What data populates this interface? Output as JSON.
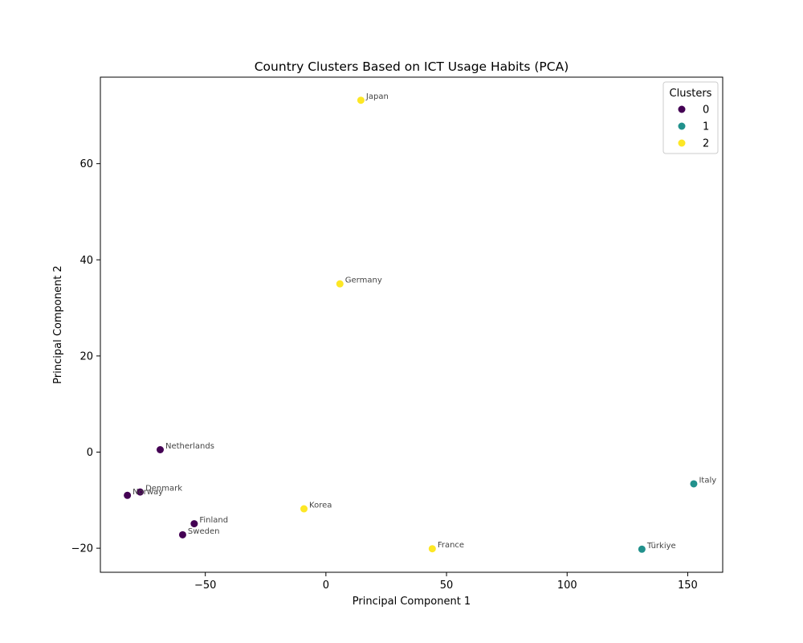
{
  "chart_data": {
    "type": "scatter",
    "title": "Country Clusters Based on ICT Usage Habits (PCA)",
    "xlabel": "Principal Component 1",
    "ylabel": "Principal Component 2",
    "xlim": [
      -93.5,
      164.5
    ],
    "ylim": [
      -25,
      78
    ],
    "xticks": [
      -50,
      0,
      50,
      100,
      150
    ],
    "yticks": [
      -20,
      0,
      20,
      40,
      60
    ],
    "xtick_labels": [
      "−50",
      "0",
      "50",
      "100",
      "150"
    ],
    "ytick_labels": [
      "−20",
      "0",
      "20",
      "40",
      "60"
    ],
    "grid": false,
    "legend": {
      "title": "Clusters",
      "location": "top-right",
      "entries": [
        {
          "label": "0",
          "color": "#440154"
        },
        {
          "label": "1",
          "color": "#21918c"
        },
        {
          "label": "2",
          "color": "#fde725"
        }
      ]
    },
    "points": [
      {
        "label": "Japan",
        "x": 14.5,
        "y": 73.2,
        "cluster": 2
      },
      {
        "label": "Germany",
        "x": 5.8,
        "y": 35.0,
        "cluster": 2
      },
      {
        "label": "Netherlands",
        "x": -68.7,
        "y": 0.5,
        "cluster": 0
      },
      {
        "label": "Denmark",
        "x": -77.0,
        "y": -8.3,
        "cluster": 0
      },
      {
        "label": "Norway",
        "x": -82.3,
        "y": -9.0,
        "cluster": 0
      },
      {
        "label": "Korea",
        "x": -9.1,
        "y": -11.8,
        "cluster": 2
      },
      {
        "label": "Finland",
        "x": -54.6,
        "y": -14.9,
        "cluster": 0
      },
      {
        "label": "Sweden",
        "x": -59.4,
        "y": -17.2,
        "cluster": 0
      },
      {
        "label": "France",
        "x": 44.1,
        "y": -20.1,
        "cluster": 2
      },
      {
        "label": "Türkiye",
        "x": 131.0,
        "y": -20.2,
        "cluster": 1
      },
      {
        "label": "Italy",
        "x": 152.5,
        "y": -6.6,
        "cluster": 1
      }
    ]
  }
}
